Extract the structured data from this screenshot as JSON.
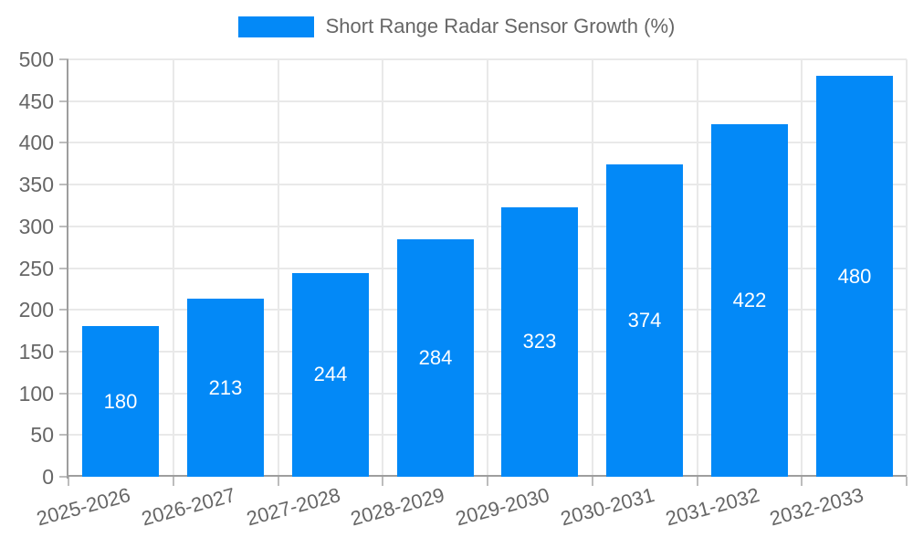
{
  "chart_data": {
    "type": "bar",
    "title": "Short Range Radar Sensor Growth (%)",
    "legend": [
      {
        "label": "Short Range Radar Sensor Growth (%)",
        "color": "#0389f7"
      }
    ],
    "legend_position": "top-center",
    "categories": [
      "2025-2026",
      "2026-2027",
      "2027-2028",
      "2028-2029",
      "2029-2030",
      "2030-2031",
      "2031-2032",
      "2032-2033"
    ],
    "values": [
      180,
      213,
      244,
      284,
      323,
      374,
      422,
      480
    ],
    "xlabel": "",
    "ylabel": "",
    "ylim": [
      0,
      500
    ],
    "ytick_step": 50,
    "grid": true,
    "x_label_rotation_deg": -15,
    "value_labels": "inside-center",
    "colors": {
      "bar": "#0389f7",
      "grid": "#e9e9e9",
      "axis": "#9e9e9e",
      "tick": "#bdbdbd",
      "tick_label": "#666666",
      "value_label": "#ffffff",
      "background": "#ffffff"
    }
  }
}
